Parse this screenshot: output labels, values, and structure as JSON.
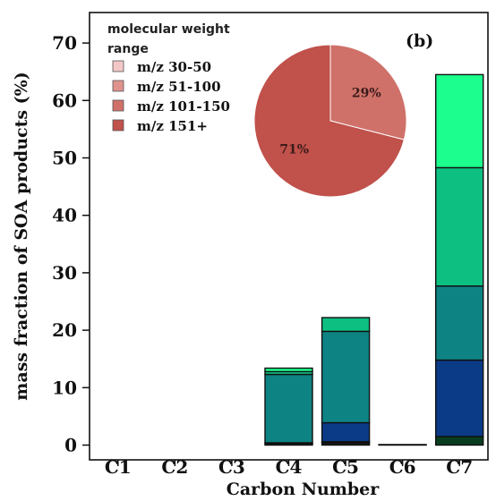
{
  "chart_data": [
    {
      "type": "bar",
      "stacked": true,
      "panel_label": "(b)",
      "xlabel": "Carbon Number",
      "ylabel": "mass fraction of SOA products (%)",
      "categories": [
        "C1",
        "C2",
        "C3",
        "C4",
        "C5",
        "C6",
        "C7"
      ],
      "ylim": [
        0,
        74
      ],
      "yticks": [
        0,
        10,
        20,
        30,
        40,
        50,
        60,
        70
      ],
      "grid": false,
      "series": [
        {
          "color": "#1a1a1a",
          "values": [
            0,
            0,
            0,
            0.3,
            0.4,
            0.1,
            0
          ]
        },
        {
          "color": "#0a3d1f",
          "values": [
            0,
            0,
            0,
            0.1,
            0.2,
            0,
            1.5
          ]
        },
        {
          "color": "#0b3b87",
          "values": [
            0,
            0,
            0,
            0,
            3.3,
            0,
            13.3
          ]
        },
        {
          "color": "#0e8383",
          "values": [
            0,
            0,
            0,
            11.9,
            15.9,
            0,
            12.9
          ]
        },
        {
          "color": "#0dc082",
          "values": [
            0,
            0,
            0,
            0.5,
            2.4,
            0,
            20.6
          ]
        },
        {
          "color": "#1cff8e",
          "values": [
            0,
            0,
            0,
            0.6,
            0,
            0,
            16.2
          ]
        }
      ]
    },
    {
      "type": "pie",
      "legend_title": "molecular weight range",
      "legend_position": "top-left",
      "labels": [
        "m/z 30-50",
        "m/z 51-100",
        "m/z 101-150",
        "m/z 151+"
      ],
      "colors": [
        "#f4c7c7",
        "#e0938e",
        "#cf7169",
        "#c0514b"
      ],
      "values": [
        0,
        0,
        29,
        71
      ],
      "slice_labels": [
        "",
        "",
        "29%",
        "71%"
      ]
    }
  ]
}
